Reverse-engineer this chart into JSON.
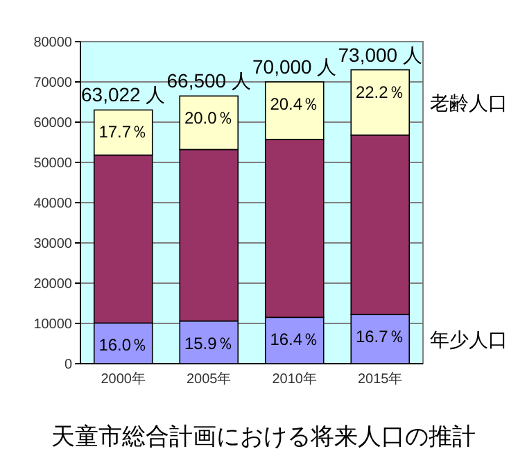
{
  "chart_data": {
    "type": "bar",
    "title": "天童市総合計画における将来人口の推計",
    "categories": [
      "2000年",
      "2005年",
      "2010年",
      "2015年"
    ],
    "stacked": true,
    "series": [
      {
        "name": "年少人口",
        "color": "#9999ff",
        "values": [
          10100,
          10600,
          11500,
          12200
        ]
      },
      {
        "color": "#993366",
        "values": [
          41722,
          42600,
          44200,
          44600
        ]
      },
      {
        "name": "老齢人口",
        "color": "#ffffcc",
        "values": [
          11200,
          13300,
          14300,
          16200
        ]
      }
    ],
    "annotations": [
      {
        "text": "16.0％",
        "x": "2000年",
        "y": 10100
      },
      {
        "text": "15.9％",
        "x": "2005年",
        "y": 10600
      },
      {
        "text": "16.4％",
        "x": "2010年",
        "y": 11500
      },
      {
        "text": "16.7％",
        "x": "2015年",
        "y": 12200
      },
      {
        "text": "17.7％",
        "x": "2000年",
        "y": 63022
      },
      {
        "text": "20.0％",
        "x": "2005年",
        "y": 66500
      },
      {
        "text": "20.4％",
        "x": "2010年",
        "y": 70000
      },
      {
        "text": "22.2％",
        "x": "2015年",
        "y": 73000
      }
    ],
    "totals": [
      "63,022 人",
      "66,500 人",
      "70,000 人",
      "73,000 人"
    ],
    "ylim": [
      0,
      80000
    ],
    "yticks": [
      0,
      10000,
      20000,
      30000,
      40000,
      50000,
      60000,
      70000,
      80000
    ],
    "grid": "y"
  }
}
